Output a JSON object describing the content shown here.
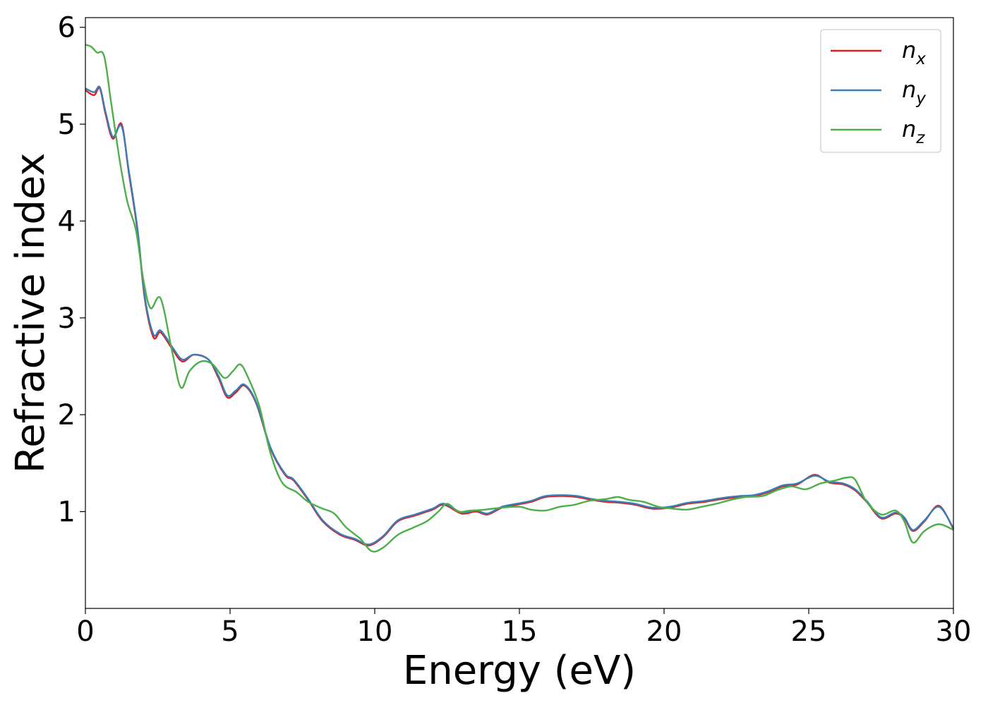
{
  "chart_data": {
    "type": "line",
    "title": "",
    "xlabel": "Energy (eV)",
    "ylabel": "Refractive index",
    "xlim": [
      0,
      30
    ],
    "ylim": [
      0,
      6.1
    ],
    "xticks": [
      0,
      5,
      10,
      15,
      20,
      25,
      30
    ],
    "yticks": [
      1,
      2,
      3,
      4,
      5,
      6
    ],
    "grid": false,
    "legend_position": "top-right",
    "series": [
      {
        "name": "n_x",
        "label_base": "n",
        "label_sub": "x",
        "color": "#e41a1c",
        "points": [
          [
            0,
            5.35
          ],
          [
            0.3,
            5.3
          ],
          [
            0.5,
            5.37
          ],
          [
            0.7,
            5.1
          ],
          [
            0.95,
            4.85
          ],
          [
            1.25,
            5.0
          ],
          [
            1.5,
            4.5
          ],
          [
            1.8,
            3.9
          ],
          [
            2.05,
            3.2
          ],
          [
            2.35,
            2.8
          ],
          [
            2.6,
            2.85
          ],
          [
            3.0,
            2.68
          ],
          [
            3.35,
            2.55
          ],
          [
            3.75,
            2.62
          ],
          [
            4.25,
            2.57
          ],
          [
            4.6,
            2.38
          ],
          [
            4.9,
            2.18
          ],
          [
            5.2,
            2.23
          ],
          [
            5.5,
            2.3
          ],
          [
            5.9,
            2.12
          ],
          [
            6.4,
            1.65
          ],
          [
            6.9,
            1.38
          ],
          [
            7.2,
            1.32
          ],
          [
            7.7,
            1.12
          ],
          [
            8.2,
            0.9
          ],
          [
            8.8,
            0.76
          ],
          [
            9.3,
            0.71
          ],
          [
            9.8,
            0.65
          ],
          [
            10.3,
            0.74
          ],
          [
            10.8,
            0.9
          ],
          [
            11.4,
            0.96
          ],
          [
            12.0,
            1.02
          ],
          [
            12.4,
            1.07
          ],
          [
            13.0,
            0.98
          ],
          [
            13.5,
            1.0
          ],
          [
            13.9,
            0.97
          ],
          [
            14.4,
            1.04
          ],
          [
            14.9,
            1.07
          ],
          [
            15.4,
            1.1
          ],
          [
            15.9,
            1.15
          ],
          [
            16.5,
            1.16
          ],
          [
            17.0,
            1.15
          ],
          [
            17.5,
            1.12
          ],
          [
            18.0,
            1.1
          ],
          [
            18.5,
            1.09
          ],
          [
            19.0,
            1.07
          ],
          [
            19.6,
            1.03
          ],
          [
            20.2,
            1.04
          ],
          [
            20.8,
            1.08
          ],
          [
            21.4,
            1.1
          ],
          [
            22.0,
            1.13
          ],
          [
            22.6,
            1.15
          ],
          [
            23.1,
            1.16
          ],
          [
            23.6,
            1.2
          ],
          [
            24.1,
            1.26
          ],
          [
            24.6,
            1.28
          ],
          [
            25.2,
            1.38
          ],
          [
            25.7,
            1.3
          ],
          [
            26.2,
            1.28
          ],
          [
            26.6,
            1.22
          ],
          [
            27.0,
            1.1
          ],
          [
            27.5,
            0.93
          ],
          [
            28.0,
            0.98
          ],
          [
            28.3,
            0.93
          ],
          [
            28.6,
            0.8
          ],
          [
            29.0,
            0.9
          ],
          [
            29.5,
            1.06
          ],
          [
            30,
            0.82
          ]
        ]
      },
      {
        "name": "n_y",
        "label_base": "n",
        "label_sub": "y",
        "color": "#377eb8",
        "points": [
          [
            0,
            5.37
          ],
          [
            0.3,
            5.33
          ],
          [
            0.5,
            5.38
          ],
          [
            0.7,
            5.12
          ],
          [
            0.95,
            4.87
          ],
          [
            1.25,
            4.98
          ],
          [
            1.5,
            4.52
          ],
          [
            1.8,
            3.92
          ],
          [
            2.05,
            3.22
          ],
          [
            2.35,
            2.83
          ],
          [
            2.6,
            2.87
          ],
          [
            3.0,
            2.7
          ],
          [
            3.35,
            2.57
          ],
          [
            3.75,
            2.62
          ],
          [
            4.25,
            2.57
          ],
          [
            4.6,
            2.4
          ],
          [
            4.9,
            2.2
          ],
          [
            5.2,
            2.25
          ],
          [
            5.5,
            2.31
          ],
          [
            5.9,
            2.13
          ],
          [
            6.4,
            1.66
          ],
          [
            6.9,
            1.39
          ],
          [
            7.2,
            1.33
          ],
          [
            7.7,
            1.13
          ],
          [
            8.2,
            0.91
          ],
          [
            8.8,
            0.77
          ],
          [
            9.3,
            0.72
          ],
          [
            9.8,
            0.66
          ],
          [
            10.3,
            0.75
          ],
          [
            10.8,
            0.91
          ],
          [
            11.4,
            0.97
          ],
          [
            12.0,
            1.03
          ],
          [
            12.4,
            1.08
          ],
          [
            13.0,
            0.99
          ],
          [
            13.5,
            1.01
          ],
          [
            13.9,
            0.98
          ],
          [
            14.4,
            1.05
          ],
          [
            14.9,
            1.08
          ],
          [
            15.4,
            1.11
          ],
          [
            15.9,
            1.16
          ],
          [
            16.5,
            1.17
          ],
          [
            17.0,
            1.16
          ],
          [
            17.5,
            1.13
          ],
          [
            18.0,
            1.11
          ],
          [
            18.5,
            1.1
          ],
          [
            19.0,
            1.08
          ],
          [
            19.6,
            1.04
          ],
          [
            20.2,
            1.05
          ],
          [
            20.8,
            1.09
          ],
          [
            21.4,
            1.11
          ],
          [
            22.0,
            1.14
          ],
          [
            22.6,
            1.16
          ],
          [
            23.1,
            1.17
          ],
          [
            23.6,
            1.21
          ],
          [
            24.1,
            1.27
          ],
          [
            24.6,
            1.29
          ],
          [
            25.2,
            1.37
          ],
          [
            25.7,
            1.31
          ],
          [
            26.2,
            1.29
          ],
          [
            26.6,
            1.23
          ],
          [
            27.0,
            1.11
          ],
          [
            27.5,
            0.94
          ],
          [
            28.0,
            0.99
          ],
          [
            28.3,
            0.94
          ],
          [
            28.6,
            0.81
          ],
          [
            29.0,
            0.91
          ],
          [
            29.5,
            1.05
          ],
          [
            30,
            0.83
          ]
        ]
      },
      {
        "name": "n_z",
        "label_base": "n",
        "label_sub": "z",
        "color": "#4daf4a",
        "points": [
          [
            0,
            5.82
          ],
          [
            0.2,
            5.8
          ],
          [
            0.4,
            5.74
          ],
          [
            0.65,
            5.7
          ],
          [
            0.9,
            5.2
          ],
          [
            1.2,
            4.6
          ],
          [
            1.45,
            4.2
          ],
          [
            1.75,
            3.9
          ],
          [
            2.0,
            3.4
          ],
          [
            2.25,
            3.1
          ],
          [
            2.6,
            3.2
          ],
          [
            3.0,
            2.65
          ],
          [
            3.3,
            2.28
          ],
          [
            3.6,
            2.45
          ],
          [
            4.0,
            2.55
          ],
          [
            4.4,
            2.52
          ],
          [
            4.8,
            2.38
          ],
          [
            5.1,
            2.45
          ],
          [
            5.35,
            2.52
          ],
          [
            5.6,
            2.4
          ],
          [
            6.0,
            2.1
          ],
          [
            6.4,
            1.6
          ],
          [
            6.8,
            1.3
          ],
          [
            7.3,
            1.2
          ],
          [
            7.7,
            1.1
          ],
          [
            8.2,
            1.03
          ],
          [
            8.6,
            0.98
          ],
          [
            9.0,
            0.84
          ],
          [
            9.5,
            0.72
          ],
          [
            9.9,
            0.59
          ],
          [
            10.3,
            0.63
          ],
          [
            10.8,
            0.76
          ],
          [
            11.3,
            0.83
          ],
          [
            11.8,
            0.9
          ],
          [
            12.2,
            1.0
          ],
          [
            12.5,
            1.08
          ],
          [
            12.9,
            1.0
          ],
          [
            13.3,
            1.01
          ],
          [
            13.8,
            1.02
          ],
          [
            14.4,
            1.04
          ],
          [
            15.0,
            1.05
          ],
          [
            15.4,
            1.02
          ],
          [
            15.9,
            1.01
          ],
          [
            16.4,
            1.05
          ],
          [
            16.9,
            1.07
          ],
          [
            17.4,
            1.11
          ],
          [
            18.0,
            1.13
          ],
          [
            18.4,
            1.15
          ],
          [
            18.8,
            1.12
          ],
          [
            19.3,
            1.1
          ],
          [
            19.8,
            1.05
          ],
          [
            20.3,
            1.03
          ],
          [
            20.8,
            1.02
          ],
          [
            21.3,
            1.05
          ],
          [
            21.8,
            1.08
          ],
          [
            22.3,
            1.12
          ],
          [
            22.8,
            1.15
          ],
          [
            23.4,
            1.16
          ],
          [
            23.9,
            1.22
          ],
          [
            24.4,
            1.26
          ],
          [
            24.9,
            1.23
          ],
          [
            25.4,
            1.29
          ],
          [
            25.9,
            1.32
          ],
          [
            26.3,
            1.35
          ],
          [
            26.6,
            1.33
          ],
          [
            27.0,
            1.1
          ],
          [
            27.5,
            0.97
          ],
          [
            28.0,
            1.01
          ],
          [
            28.3,
            0.9
          ],
          [
            28.6,
            0.68
          ],
          [
            29.0,
            0.8
          ],
          [
            29.5,
            0.87
          ],
          [
            30,
            0.81
          ]
        ]
      }
    ]
  }
}
